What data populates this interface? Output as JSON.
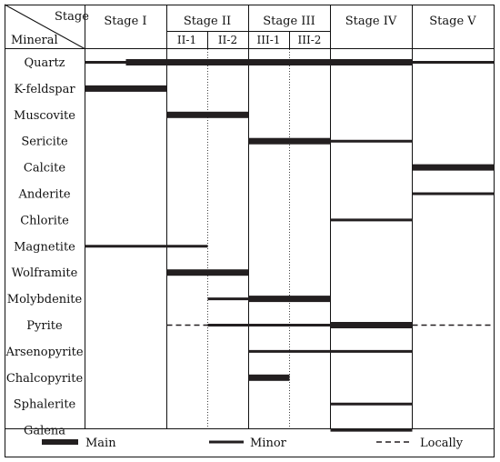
{
  "header": {
    "stage_label": "Stage",
    "mineral_label": "Mineral",
    "stages": [
      {
        "key": "I",
        "label": "Stage I"
      },
      {
        "key": "II",
        "label": "Stage II",
        "substages": [
          "II-1",
          "II-2"
        ]
      },
      {
        "key": "III",
        "label": "Stage III",
        "substages": [
          "III-1",
          "III-2"
        ]
      },
      {
        "key": "IV",
        "label": "Stage IV"
      },
      {
        "key": "V",
        "label": "Stage V"
      }
    ]
  },
  "minerals": [
    {
      "name": "Quartz",
      "bars": [
        {
          "from": 0,
          "to": 0.5,
          "type": "minor"
        },
        {
          "from": 0.5,
          "to": 2.0,
          "type": "main"
        },
        {
          "from": 2.0,
          "to": 3.0,
          "type": "main"
        },
        {
          "from": 3.0,
          "to": 4.0,
          "type": "main"
        },
        {
          "from": 4.0,
          "to": 5.0,
          "type": "minor"
        }
      ]
    },
    {
      "name": "K-feldspar",
      "bars": [
        {
          "from": 0,
          "to": 1.0,
          "type": "main"
        }
      ]
    },
    {
      "name": "Muscovite",
      "bars": [
        {
          "from": 1.0,
          "to": 2.0,
          "type": "main"
        }
      ]
    },
    {
      "name": "Sericite",
      "bars": [
        {
          "from": 2.0,
          "to": 3.0,
          "type": "main"
        },
        {
          "from": 3.0,
          "to": 4.0,
          "type": "minor"
        }
      ]
    },
    {
      "name": "Calcite",
      "bars": [
        {
          "from": 4.0,
          "to": 5.0,
          "type": "main"
        }
      ]
    },
    {
      "name": "Anderite",
      "bars": [
        {
          "from": 4.0,
          "to": 5.0,
          "type": "minor"
        }
      ]
    },
    {
      "name": "Chlorite",
      "bars": [
        {
          "from": 3.0,
          "to": 4.0,
          "type": "minor"
        }
      ]
    },
    {
      "name": "Magnetite",
      "bars": [
        {
          "from": 0,
          "to": 1.5,
          "type": "minor"
        }
      ]
    },
    {
      "name": "Wolframite",
      "bars": [
        {
          "from": 1.0,
          "to": 2.0,
          "type": "main"
        }
      ]
    },
    {
      "name": "Molybdenite",
      "bars": [
        {
          "from": 1.5,
          "to": 2.0,
          "type": "minor"
        },
        {
          "from": 2.0,
          "to": 3.0,
          "type": "main"
        }
      ]
    },
    {
      "name": "Pyrite",
      "bars": [
        {
          "from": 1.0,
          "to": 1.5,
          "type": "locally"
        },
        {
          "from": 1.5,
          "to": 3.0,
          "type": "minor"
        },
        {
          "from": 3.0,
          "to": 4.0,
          "type": "main"
        },
        {
          "from": 4.0,
          "to": 5.0,
          "type": "locally"
        }
      ]
    },
    {
      "name": "Arsenopyrite",
      "bars": [
        {
          "from": 2.0,
          "to": 4.0,
          "type": "minor"
        }
      ]
    },
    {
      "name": "Chalcopyrite",
      "bars": [
        {
          "from": 2.0,
          "to": 2.5,
          "type": "main"
        }
      ]
    },
    {
      "name": "Sphalerite",
      "bars": [
        {
          "from": 3.0,
          "to": 4.0,
          "type": "minor"
        }
      ]
    },
    {
      "name": "Galena",
      "bars": [
        {
          "from": 3.0,
          "to": 4.0,
          "type": "minor"
        }
      ]
    }
  ],
  "legend": {
    "main": "Main",
    "minor": "Minor",
    "locally": "Locally"
  },
  "colors": {
    "line": "#111111",
    "bar": "#231f20"
  }
}
